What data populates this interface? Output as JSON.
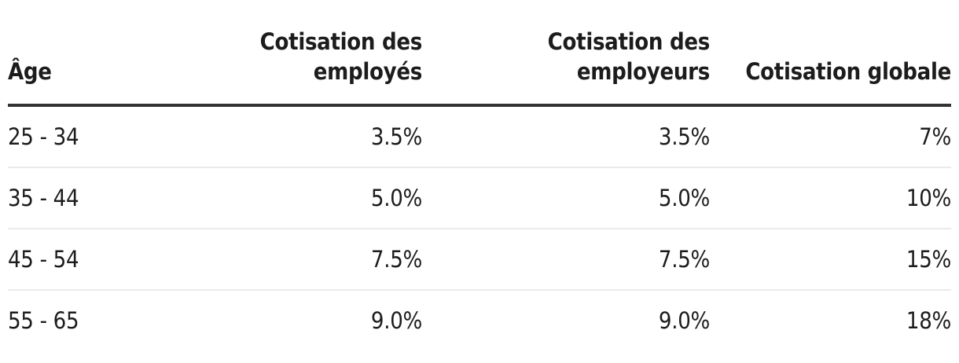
{
  "colors": {
    "background": "#ffffff",
    "text": "#1c1c1c",
    "header_rule": "#333333",
    "row_divider": "#eaeaea"
  },
  "table": {
    "column_headers": [
      "Âge",
      "Cotisation des employés",
      "Cotisation des employeurs",
      "Cotisation globale"
    ],
    "rows": [
      [
        "25 - 34",
        "3.5%",
        "3.5%",
        "7%"
      ],
      [
        "35 - 44",
        "5.0%",
        "5.0%",
        "10%"
      ],
      [
        "45 - 54",
        "7.5%",
        "7.5%",
        "15%"
      ],
      [
        "55 - 65",
        "9.0%",
        "9.0%",
        "18%"
      ]
    ]
  },
  "chart_data": {
    "type": "table",
    "title": "",
    "columns": [
      "Âge",
      "Cotisation des employés",
      "Cotisation des employeurs",
      "Cotisation globale"
    ],
    "rows": [
      [
        "25 - 34",
        "3.5%",
        "3.5%",
        "7%"
      ],
      [
        "35 - 44",
        "5.0%",
        "5.0%",
        "10%"
      ],
      [
        "45 - 54",
        "7.5%",
        "7.5%",
        "15%"
      ],
      [
        "55 - 65",
        "9.0%",
        "9.0%",
        "18%"
      ]
    ],
    "notes": {
      "employee_contribution_pct": [
        3.5,
        5.0,
        7.5,
        9.0
      ],
      "employer_contribution_pct": [
        3.5,
        5.0,
        7.5,
        9.0
      ],
      "global_contribution_pct": [
        7,
        10,
        15,
        18
      ]
    }
  }
}
